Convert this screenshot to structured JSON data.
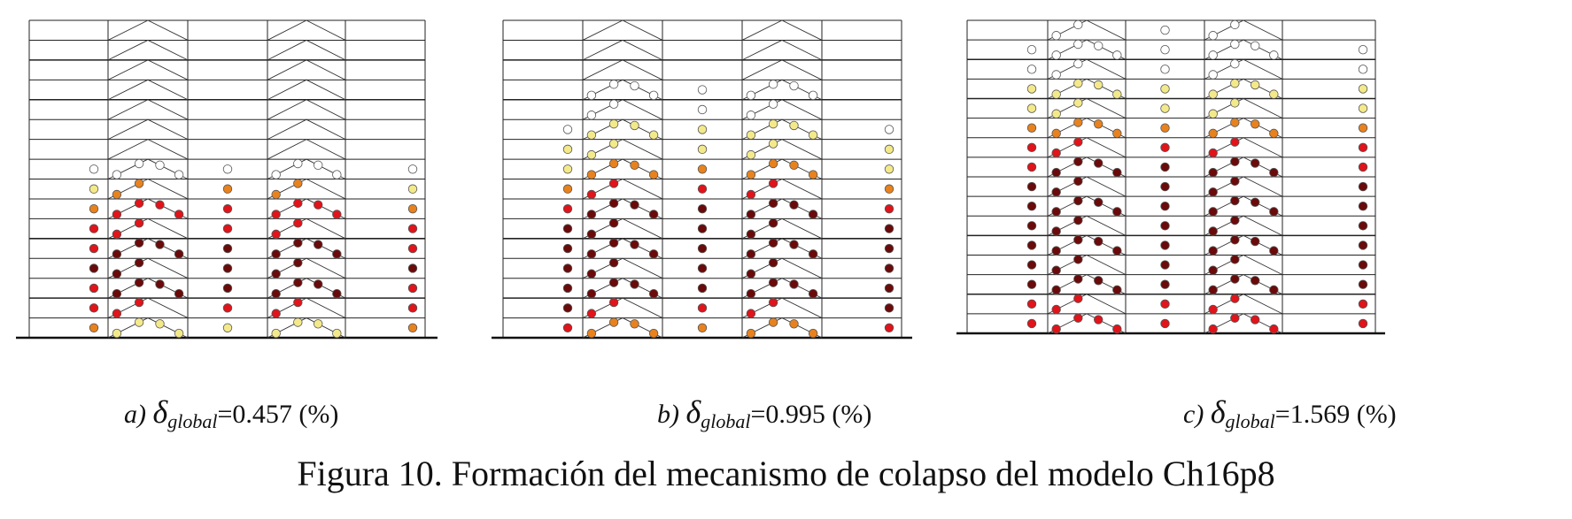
{
  "figure_title": "Figura 10. Formación del mecanismo de colapso del modelo Ch16p8",
  "legend_colors": {
    "none": "#ffffff",
    "yellow": "#f4e98a",
    "orange": "#e8821e",
    "red": "#e0141a",
    "dark_red": "#6b0a0a"
  },
  "panels": [
    {
      "label": "a)",
      "symbol": "δ",
      "subscript": "global",
      "value_text": "=0.457 (%)",
      "columns": {
        "left": [
          "",
          "",
          "",
          "",
          "",
          "",
          "",
          "",
          "",
          "w",
          "y",
          "o",
          "r",
          "r",
          "d",
          "r",
          "r",
          "o",
          "w",
          "",
          ""
        ],
        "mid": [
          "",
          "",
          "",
          "",
          "",
          "",
          "",
          "",
          "",
          "w",
          "o",
          "r",
          "r",
          "d",
          "d",
          "d",
          "r",
          "y",
          "y",
          "",
          ""
        ],
        "right": [
          "",
          "",
          "",
          "",
          "",
          "",
          "",
          "",
          "",
          "w",
          "y",
          "o",
          "r",
          "r",
          "d",
          "r",
          "r",
          "o",
          "w",
          "",
          ""
        ]
      }
    },
    {
      "label": "b)",
      "symbol": "δ",
      "subscript": "global",
      "value_text": "=0.995 (%)",
      "columns": {
        "left": [
          "",
          "",
          "",
          "",
          "",
          "",
          "",
          "w",
          "y",
          "y",
          "o",
          "r",
          "d",
          "d",
          "d",
          "d",
          "d",
          "r",
          "o",
          "y",
          "w"
        ],
        "mid": [
          "",
          "",
          "",
          "",
          "",
          "w",
          "w",
          "y",
          "y",
          "o",
          "r",
          "d",
          "d",
          "d",
          "d",
          "d",
          "r",
          "o",
          "y",
          "y",
          "w"
        ],
        "right": [
          "",
          "",
          "",
          "",
          "",
          "",
          "",
          "w",
          "y",
          "y",
          "o",
          "r",
          "d",
          "d",
          "d",
          "d",
          "d",
          "r",
          "o",
          "y",
          "w"
        ]
      }
    },
    {
      "label": "c)",
      "symbol": "δ",
      "subscript": "global",
      "value_text": "=1.569 (%)",
      "columns": {
        "left": [
          "",
          "",
          "",
          "w",
          "w",
          "y",
          "y",
          "o",
          "r",
          "r",
          "d",
          "d",
          "d",
          "d",
          "d",
          "d",
          "r",
          "r",
          "o",
          "w",
          ""
        ],
        "mid": [
          "",
          "",
          "w",
          "w",
          "w",
          "y",
          "y",
          "o",
          "r",
          "d",
          "d",
          "d",
          "d",
          "d",
          "d",
          "d",
          "r",
          "r",
          "o",
          "w",
          ""
        ],
        "right": [
          "",
          "",
          "",
          "w",
          "w",
          "y",
          "y",
          "o",
          "r",
          "r",
          "d",
          "d",
          "d",
          "d",
          "d",
          "d",
          "r",
          "r",
          "o",
          "w",
          ""
        ]
      }
    }
  ]
}
